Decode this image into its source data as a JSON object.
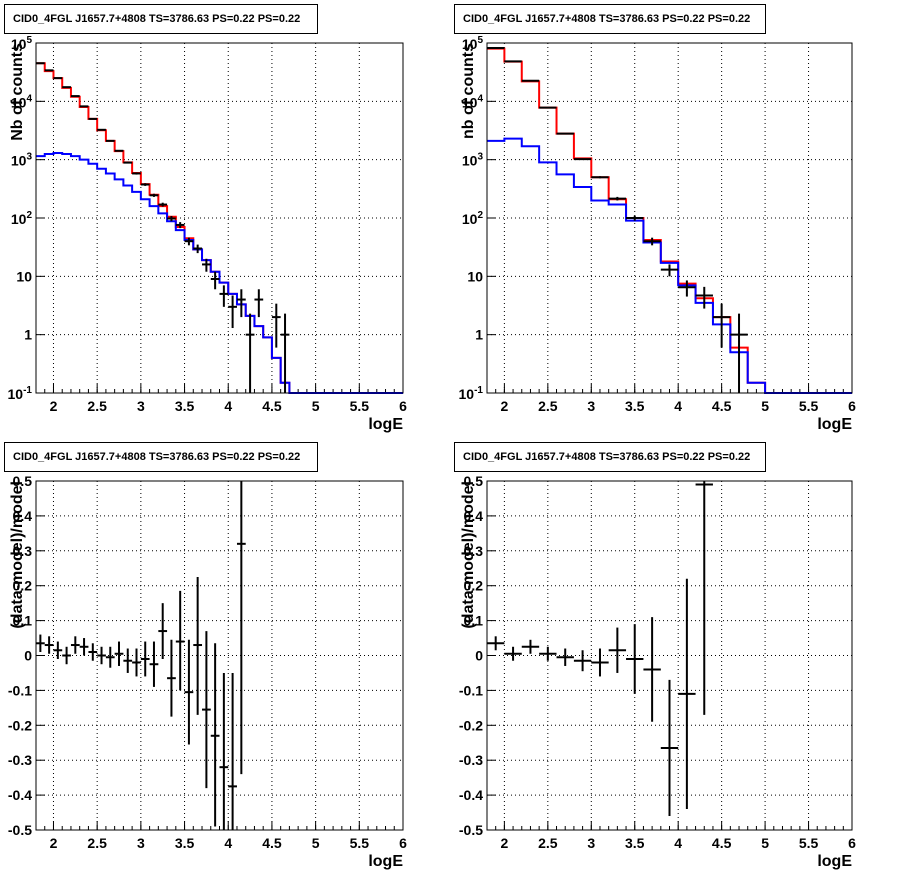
{
  "panel_title": "CID0_4FGL J1657.7+4808 TS=3786.63 PS=0.22 PS=0.22",
  "colors": {
    "model_total": "#ff0000",
    "model_source": "#0000ff",
    "data": "#000000"
  },
  "chart_data": [
    {
      "type": "line",
      "title": "CID0_4FGL J1657.7+4808 TS=3786.63 PS=0.22 PS=0.22",
      "xlabel": "logE",
      "ylabel": "Nb of counts",
      "log_y": true,
      "xlim": [
        1.8,
        6
      ],
      "ylim": [
        0.1,
        100000
      ],
      "grid": true,
      "x_ticks": [
        "2",
        "2.5",
        "3",
        "3.5",
        "4",
        "4.5",
        "5",
        "5.5",
        "6"
      ],
      "y_ticks": [
        "10^-1",
        "1",
        "10",
        "10^2",
        "10^3",
        "10^4",
        "10^5"
      ],
      "bin_edges": [
        1.8,
        1.9,
        2.0,
        2.1,
        2.2,
        2.3,
        2.4,
        2.5,
        2.6,
        2.7,
        2.8,
        2.9,
        3.0,
        3.1,
        3.2,
        3.3,
        3.4,
        3.5,
        3.6,
        3.7,
        3.8,
        3.9,
        4.0,
        4.1,
        4.2,
        4.3,
        4.4,
        4.5,
        4.6,
        4.7,
        4.8,
        4.9,
        5.0,
        5.1,
        5.2,
        5.3,
        5.4,
        5.5,
        5.6,
        5.7,
        5.8,
        5.9,
        6.0
      ],
      "series": [
        {
          "values": [
            45000,
            33000,
            25000,
            17000,
            12000,
            8000,
            5000,
            3200,
            2100,
            1400,
            900,
            590,
            380,
            250,
            160,
            105,
            70,
            45,
            29,
            19,
            12,
            7.8,
            5.0,
            3.3,
            2.1,
            1.4,
            0.9,
            0.4,
            0.15,
            0.1,
            0.1,
            0.1,
            0.1,
            0.1,
            0.1,
            0.1,
            0.1,
            0.1,
            0.1,
            0.1,
            0.1,
            0.1
          ]
        },
        {
          "values": [
            1150,
            1250,
            1300,
            1250,
            1150,
            1000,
            850,
            700,
            580,
            460,
            360,
            280,
            210,
            160,
            120,
            88,
            62,
            42,
            29,
            19,
            12,
            7.8,
            5.0,
            3.3,
            2.1,
            1.4,
            0.9,
            0.4,
            0.15,
            0.1,
            0.1,
            0.1,
            0.1,
            0.1,
            0.1,
            0.1,
            0.1,
            0.1,
            0.1,
            0.1,
            0.1,
            0.1
          ]
        }
      ],
      "data_points": [
        {
          "x": 1.85,
          "y": 45000,
          "ylo": 44500,
          "yhi": 45500
        },
        {
          "x": 1.95,
          "y": 34000,
          "ylo": 33600,
          "yhi": 34400
        },
        {
          "x": 2.05,
          "y": 25000,
          "ylo": 24700,
          "yhi": 25300
        },
        {
          "x": 2.15,
          "y": 17500,
          "ylo": 17200,
          "yhi": 17800
        },
        {
          "x": 2.25,
          "y": 12300,
          "ylo": 12100,
          "yhi": 12500
        },
        {
          "x": 2.35,
          "y": 8200,
          "ylo": 8050,
          "yhi": 8350
        },
        {
          "x": 2.45,
          "y": 5000,
          "ylo": 4900,
          "yhi": 5100
        },
        {
          "x": 2.55,
          "y": 3250,
          "ylo": 3180,
          "yhi": 3320
        },
        {
          "x": 2.65,
          "y": 2100,
          "ylo": 2050,
          "yhi": 2150
        },
        {
          "x": 2.75,
          "y": 1420,
          "ylo": 1380,
          "yhi": 1460
        },
        {
          "x": 2.85,
          "y": 890,
          "ylo": 860,
          "yhi": 920
        },
        {
          "x": 2.95,
          "y": 580,
          "ylo": 555,
          "yhi": 605
        },
        {
          "x": 3.05,
          "y": 375,
          "ylo": 355,
          "yhi": 395
        },
        {
          "x": 3.15,
          "y": 245,
          "ylo": 230,
          "yhi": 260
        },
        {
          "x": 3.25,
          "y": 170,
          "ylo": 157,
          "yhi": 183
        },
        {
          "x": 3.35,
          "y": 98,
          "ylo": 88,
          "yhi": 108
        },
        {
          "x": 3.45,
          "y": 76,
          "ylo": 67,
          "yhi": 85
        },
        {
          "x": 3.55,
          "y": 40,
          "ylo": 34,
          "yhi": 46
        },
        {
          "x": 3.65,
          "y": 30,
          "ylo": 25,
          "yhi": 35
        },
        {
          "x": 3.75,
          "y": 16,
          "ylo": 12,
          "yhi": 20
        },
        {
          "x": 3.85,
          "y": 9,
          "ylo": 6,
          "yhi": 12
        },
        {
          "x": 3.95,
          "y": 5,
          "ylo": 3,
          "yhi": 7
        },
        {
          "x": 4.05,
          "y": 3,
          "ylo": 1.3,
          "yhi": 4.7
        },
        {
          "x": 4.15,
          "y": 4,
          "ylo": 2,
          "yhi": 6
        },
        {
          "x": 4.25,
          "y": 1,
          "ylo": 0.1,
          "yhi": 2.3
        },
        {
          "x": 4.35,
          "y": 4,
          "ylo": 2,
          "yhi": 6
        },
        {
          "x": 4.55,
          "y": 2,
          "ylo": 0.6,
          "yhi": 3.4
        },
        {
          "x": 4.65,
          "y": 1,
          "ylo": 0.1,
          "yhi": 2.3
        }
      ]
    },
    {
      "type": "line",
      "title": "CID0_4FGL J1657.7+4808 TS=3786.63 PS=0.22 PS=0.22",
      "xlabel": "logE",
      "ylabel": "nb of counts",
      "log_y": true,
      "xlim": [
        1.8,
        6
      ],
      "ylim": [
        0.1,
        100000
      ],
      "grid": true,
      "x_ticks": [
        "2",
        "2.5",
        "3",
        "3.5",
        "4",
        "4.5",
        "5",
        "5.5",
        "6"
      ],
      "y_ticks": [
        "10^-1",
        "1",
        "10",
        "10^2",
        "10^3",
        "10^4",
        "10^5"
      ],
      "bin_edges": [
        1.8,
        2.0,
        2.2,
        2.4,
        2.6,
        2.8,
        3.0,
        3.2,
        3.4,
        3.6,
        3.8,
        4.0,
        4.2,
        4.4,
        4.6,
        4.8,
        5.0,
        5.2,
        5.4,
        5.6,
        5.8,
        6.0
      ],
      "series": [
        {
          "values": [
            80000,
            48000,
            22000,
            7800,
            2800,
            1050,
            500,
            210,
            100,
            42,
            18,
            7.5,
            4.2,
            2.0,
            0.6,
            0.15,
            0.1,
            0.1,
            0.1,
            0.1,
            0.1
          ]
        },
        {
          "values": [
            2100,
            2300,
            1700,
            900,
            560,
            340,
            200,
            170,
            90,
            38,
            17,
            7.0,
            3.5,
            1.5,
            0.5,
            0.15,
            0.1,
            0.1,
            0.1,
            0.1,
            0.1
          ]
        }
      ],
      "data_points": [
        {
          "x": 1.9,
          "y": 82000,
          "ylo": 81500,
          "yhi": 82500
        },
        {
          "x": 2.1,
          "y": 48500,
          "ylo": 48000,
          "yhi": 49000
        },
        {
          "x": 2.3,
          "y": 22500,
          "ylo": 22200,
          "yhi": 22800
        },
        {
          "x": 2.5,
          "y": 7800,
          "ylo": 7700,
          "yhi": 7900
        },
        {
          "x": 2.7,
          "y": 2800,
          "ylo": 2750,
          "yhi": 2850
        },
        {
          "x": 2.9,
          "y": 1020,
          "ylo": 990,
          "yhi": 1050
        },
        {
          "x": 3.1,
          "y": 500,
          "ylo": 480,
          "yhi": 520
        },
        {
          "x": 3.3,
          "y": 215,
          "ylo": 200,
          "yhi": 230
        },
        {
          "x": 3.5,
          "y": 100,
          "ylo": 90,
          "yhi": 110
        },
        {
          "x": 3.7,
          "y": 40,
          "ylo": 34,
          "yhi": 46
        },
        {
          "x": 3.9,
          "y": 13,
          "ylo": 10,
          "yhi": 16
        },
        {
          "x": 4.1,
          "y": 6.5,
          "ylo": 4.5,
          "yhi": 8.5
        },
        {
          "x": 4.3,
          "y": 4.7,
          "ylo": 2.8,
          "yhi": 6.6
        },
        {
          "x": 4.5,
          "y": 2,
          "ylo": 0.6,
          "yhi": 3.4
        },
        {
          "x": 4.7,
          "y": 1,
          "ylo": 0.1,
          "yhi": 2.3
        }
      ]
    },
    {
      "type": "scatter",
      "title": "CID0_4FGL J1657.7+4808 TS=3786.63 PS=0.22 PS=0.22",
      "xlabel": "logE",
      "ylabel": "(data-model)/model",
      "log_y": false,
      "xlim": [
        1.8,
        6
      ],
      "ylim": [
        -0.5,
        0.5
      ],
      "grid": true,
      "x_ticks": [
        "2",
        "2.5",
        "3",
        "3.5",
        "4",
        "4.5",
        "5",
        "5.5",
        "6"
      ],
      "y_ticks": [
        "-0.5",
        "-0.4",
        "-0.3",
        "-0.2",
        "-0.1",
        "0",
        "0.1",
        "0.2",
        "0.3",
        "0.4",
        "0.5"
      ],
      "x_half_width": 0.05,
      "data_points": [
        {
          "x": 1.85,
          "y": 0.035,
          "ylo": 0.01,
          "yhi": 0.06
        },
        {
          "x": 1.95,
          "y": 0.03,
          "ylo": 0.005,
          "yhi": 0.055
        },
        {
          "x": 2.05,
          "y": 0.015,
          "ylo": -0.01,
          "yhi": 0.04
        },
        {
          "x": 2.15,
          "y": 0.0,
          "ylo": -0.025,
          "yhi": 0.025
        },
        {
          "x": 2.25,
          "y": 0.03,
          "ylo": 0.005,
          "yhi": 0.055
        },
        {
          "x": 2.35,
          "y": 0.025,
          "ylo": 0.0,
          "yhi": 0.05
        },
        {
          "x": 2.45,
          "y": 0.01,
          "ylo": -0.015,
          "yhi": 0.035
        },
        {
          "x": 2.55,
          "y": 0.0,
          "ylo": -0.025,
          "yhi": 0.025
        },
        {
          "x": 2.65,
          "y": -0.005,
          "ylo": -0.035,
          "yhi": 0.025
        },
        {
          "x": 2.75,
          "y": 0.005,
          "ylo": -0.03,
          "yhi": 0.04
        },
        {
          "x": 2.85,
          "y": -0.015,
          "ylo": -0.05,
          "yhi": 0.02
        },
        {
          "x": 2.95,
          "y": -0.02,
          "ylo": -0.06,
          "yhi": 0.02
        },
        {
          "x": 3.05,
          "y": -0.01,
          "ylo": -0.06,
          "yhi": 0.04
        },
        {
          "x": 3.15,
          "y": -0.025,
          "ylo": -0.09,
          "yhi": 0.04
        },
        {
          "x": 3.25,
          "y": 0.07,
          "ylo": -0.01,
          "yhi": 0.15
        },
        {
          "x": 3.35,
          "y": -0.065,
          "ylo": -0.175,
          "yhi": 0.045
        },
        {
          "x": 3.45,
          "y": 0.04,
          "ylo": -0.1,
          "yhi": 0.185
        },
        {
          "x": 3.55,
          "y": -0.105,
          "ylo": -0.255,
          "yhi": 0.045
        },
        {
          "x": 3.65,
          "y": 0.03,
          "ylo": -0.17,
          "yhi": 0.225
        },
        {
          "x": 3.75,
          "y": -0.155,
          "ylo": -0.38,
          "yhi": 0.07
        },
        {
          "x": 3.85,
          "y": -0.23,
          "ylo": -0.49,
          "yhi": 0.035
        },
        {
          "x": 3.95,
          "y": -0.32,
          "ylo": -0.5,
          "yhi": -0.05
        },
        {
          "x": 4.05,
          "y": -0.375,
          "ylo": -0.5,
          "yhi": -0.05
        },
        {
          "x": 4.15,
          "y": 0.32,
          "ylo": -0.34,
          "yhi": 0.5
        }
      ]
    },
    {
      "type": "scatter",
      "title": "CID0_4FGL J1657.7+4808 TS=3786.63 PS=0.22 PS=0.22",
      "xlabel": "logE",
      "ylabel": "(data-model)/model",
      "log_y": false,
      "xlim": [
        1.8,
        6
      ],
      "ylim": [
        -0.5,
        0.5
      ],
      "grid": true,
      "x_ticks": [
        "2",
        "2.5",
        "3",
        "3.5",
        "4",
        "4.5",
        "5",
        "5.5",
        "6"
      ],
      "y_ticks": [
        "-0.5",
        "-0.4",
        "-0.3",
        "-0.2",
        "-0.1",
        "0",
        "0.1",
        "0.2",
        "0.3",
        "0.4",
        "0.5"
      ],
      "x_half_width": 0.1,
      "data_points": [
        {
          "x": 1.9,
          "y": 0.035,
          "ylo": 0.015,
          "yhi": 0.055
        },
        {
          "x": 2.1,
          "y": 0.005,
          "ylo": -0.015,
          "yhi": 0.025
        },
        {
          "x": 2.3,
          "y": 0.025,
          "ylo": 0.005,
          "yhi": 0.045
        },
        {
          "x": 2.5,
          "y": 0.005,
          "ylo": -0.015,
          "yhi": 0.025
        },
        {
          "x": 2.7,
          "y": -0.005,
          "ylo": -0.03,
          "yhi": 0.02
        },
        {
          "x": 2.9,
          "y": -0.015,
          "ylo": -0.045,
          "yhi": 0.015
        },
        {
          "x": 3.1,
          "y": -0.02,
          "ylo": -0.06,
          "yhi": 0.02
        },
        {
          "x": 3.3,
          "y": 0.015,
          "ylo": -0.05,
          "yhi": 0.08
        },
        {
          "x": 3.5,
          "y": -0.01,
          "ylo": -0.11,
          "yhi": 0.09
        },
        {
          "x": 3.7,
          "y": -0.04,
          "ylo": -0.19,
          "yhi": 0.11
        },
        {
          "x": 3.9,
          "y": -0.265,
          "ylo": -0.46,
          "yhi": -0.07
        },
        {
          "x": 4.1,
          "y": -0.11,
          "ylo": -0.44,
          "yhi": 0.22
        },
        {
          "x": 4.3,
          "y": 0.49,
          "ylo": -0.17,
          "yhi": 0.5
        }
      ]
    }
  ]
}
